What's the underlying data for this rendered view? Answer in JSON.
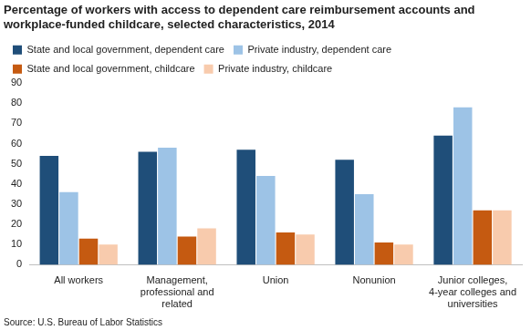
{
  "chart_data": {
    "type": "bar",
    "title": "Percentage of workers with access to dependent care reimbursement accounts and workplace-funded childcare, selected characteristics, 2014",
    "source": "Source: U.S. Bureau of Labor Statistics",
    "categories": [
      "All workers",
      "Management, professional and related",
      "Union",
      "Nonunion",
      "Junior colleges, 4-year colleges and universities"
    ],
    "series": [
      {
        "name": "State and local government, dependent care",
        "color": "#1f4e79",
        "values": [
          54,
          56,
          57,
          52,
          64
        ]
      },
      {
        "name": "Private industry, dependent care",
        "color": "#9dc3e6",
        "values": [
          36,
          58,
          44,
          35,
          78
        ]
      },
      {
        "name": "State and local government, childcare",
        "color": "#c55a11",
        "values": [
          13,
          14,
          16,
          11,
          27
        ]
      },
      {
        "name": "Private industry, childcare",
        "color": "#f8cbad",
        "values": [
          10,
          18,
          15,
          10,
          27
        ]
      }
    ],
    "ylim": [
      0,
      90
    ],
    "yticks": [
      0,
      10,
      20,
      30,
      40,
      50,
      60,
      70,
      80,
      90
    ],
    "grid": false,
    "legend": "top"
  }
}
